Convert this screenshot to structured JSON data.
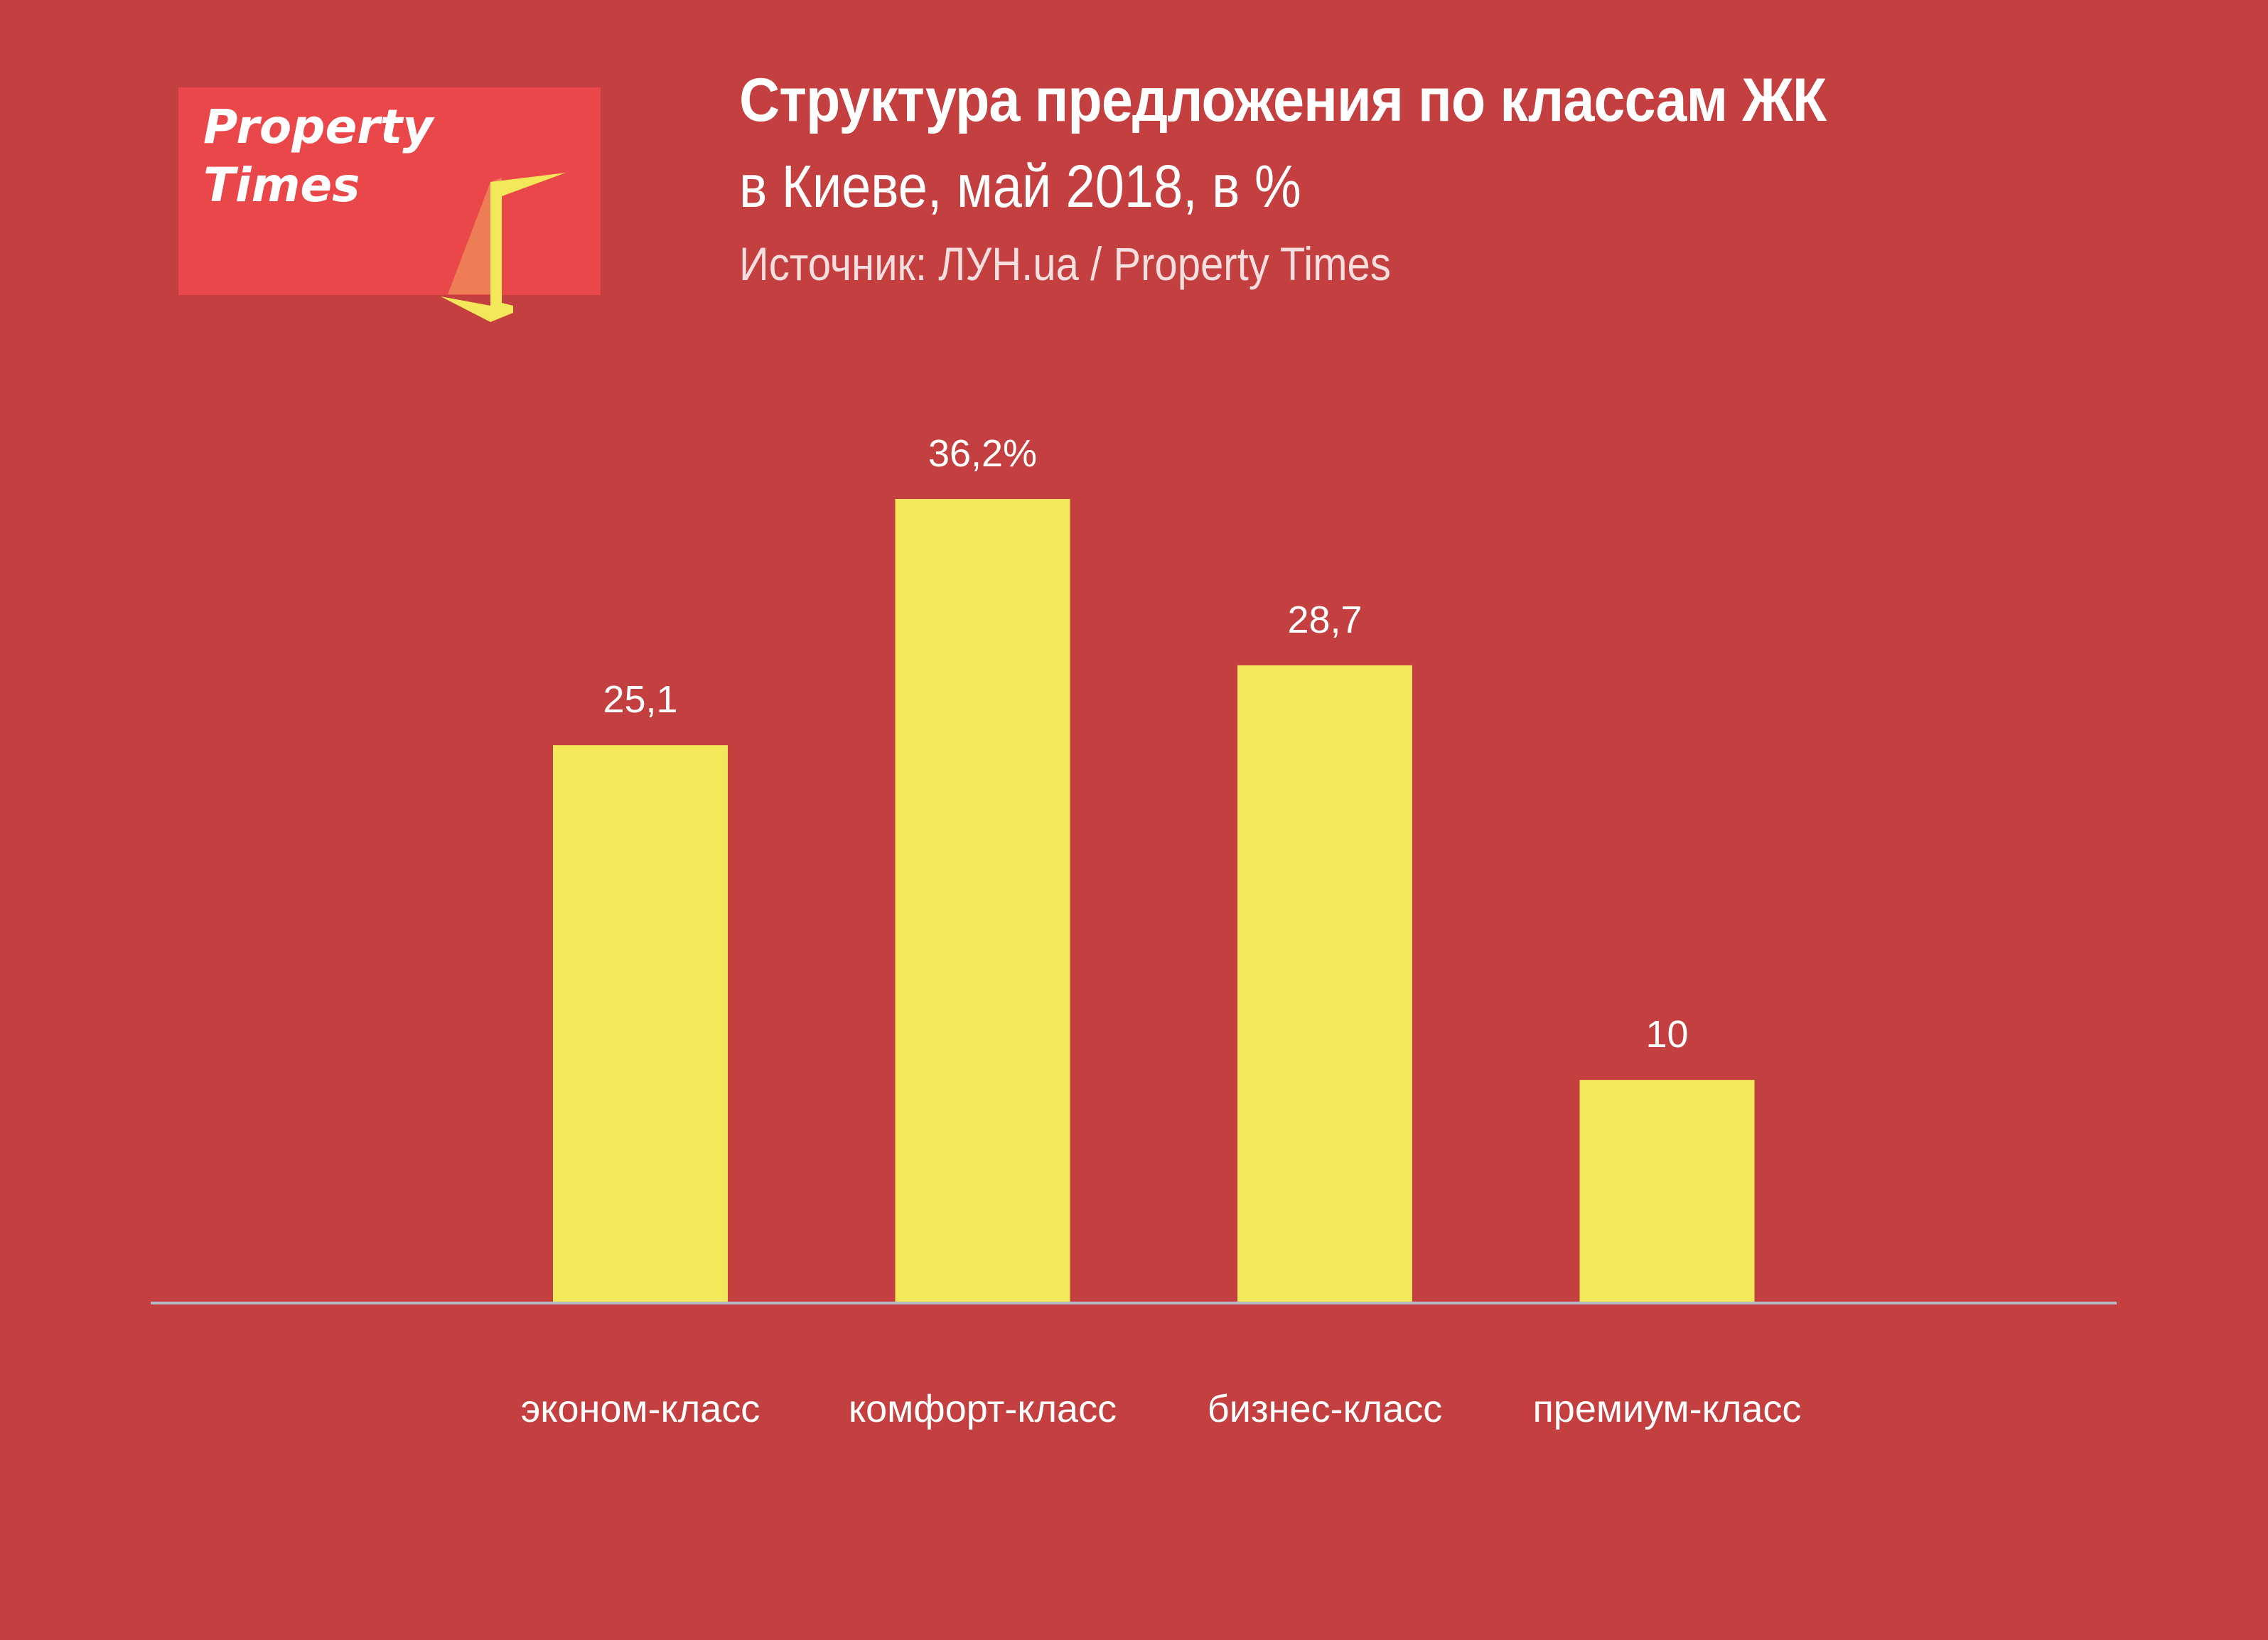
{
  "logo": {
    "line1": "Property",
    "line2": "Times"
  },
  "header": {
    "title": "Структура предложения по классам ЖК",
    "subtitle": "в Киеве, май 2018, в %",
    "source": "Источник: ЛУН.ua / Property Times"
  },
  "colors": {
    "background": "#c43f40",
    "bar": "#f2e85a",
    "axis": "#b9b9c4",
    "logo_box": "#e9474a",
    "logo_accent": "#f2e85a",
    "logo_accent_shadow": "#ee7c54",
    "text": "#ffffff"
  },
  "chart_data": {
    "type": "bar",
    "categories": [
      "эконом-класс",
      "комфорт-класс",
      "бизнес-класс",
      "премиум-класс"
    ],
    "values": [
      25.1,
      36.2,
      28.7,
      10
    ],
    "value_labels": [
      "25,1",
      "36,2%",
      "28,7",
      "10"
    ],
    "ylim": [
      0,
      36.2
    ],
    "grid": false,
    "legend": "none"
  }
}
